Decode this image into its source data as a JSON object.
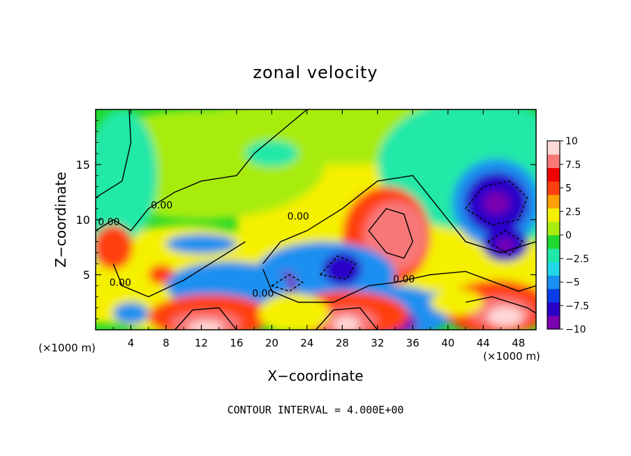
{
  "chart_data": {
    "type": "heatmap",
    "title": "zonal velocity",
    "xlabel": "X−coordinate",
    "ylabel": "Z−coordinate",
    "x_unit": "(×1000 m)",
    "y_unit": "(×1000 m)",
    "footer": "CONTOUR INTERVAL = 4.000E+00",
    "xlim": [
      0,
      50
    ],
    "ylim": [
      0,
      20
    ],
    "x_ticks": [
      4,
      8,
      12,
      16,
      20,
      24,
      28,
      32,
      36,
      40,
      44,
      48
    ],
    "x_tick_labels": [
      "4",
      "8",
      "12",
      "16",
      "20",
      "24",
      "28",
      "32",
      "36",
      "40",
      "44",
      "48"
    ],
    "y_ticks": [
      5,
      10,
      15
    ],
    "y_tick_labels": [
      "5",
      "10",
      "15"
    ],
    "contour_interval": 4.0,
    "contour_labels": [
      {
        "text": "0.00",
        "x": 1.5,
        "z": 9.5
      },
      {
        "text": "0.00",
        "x": 7.5,
        "z": 11.0
      },
      {
        "text": "0.00",
        "x": 23.0,
        "z": 10.0
      },
      {
        "text": "0.00",
        "x": 2.8,
        "z": 4.0
      },
      {
        "text": "0.00",
        "x": 19.0,
        "z": 3.0
      },
      {
        "text": "0.00",
        "x": 35.0,
        "z": 4.3
      }
    ],
    "colorbar": {
      "min": -10,
      "max": 10,
      "tick_values": [
        10,
        7.5,
        5,
        2.5,
        0,
        -2.5,
        -5,
        -7.5,
        -10
      ],
      "tick_labels": [
        "10",
        "7.5",
        "5",
        "2.5",
        "0",
        "−2.5",
        "−5",
        "−7.5",
        "−10"
      ],
      "colors": [
        "#7a00b0",
        "#2a00c8",
        "#0a3ce8",
        "#1a90f0",
        "#22d8e8",
        "#20e8a8",
        "#20d830",
        "#a8ec10",
        "#f4f000",
        "#ffa000",
        "#ff4010",
        "#f00000",
        "#f87878",
        "#ffd8d8"
      ]
    },
    "field_features": [
      {
        "kind": "max",
        "x": 34.0,
        "z": 9.0,
        "value": 8.5
      },
      {
        "kind": "max",
        "x": 46.0,
        "z": 1.5,
        "value": 10.5
      },
      {
        "kind": "max",
        "x": 12.5,
        "z": 0.5,
        "value": 10.5
      },
      {
        "kind": "max",
        "x": 28.5,
        "z": 1.0,
        "value": 10.0
      },
      {
        "kind": "min",
        "x": 45.5,
        "z": 11.5,
        "value": -11.0
      },
      {
        "kind": "min",
        "x": 46.5,
        "z": 7.7,
        "value": -10.5
      },
      {
        "kind": "min",
        "x": 28.0,
        "z": 5.5,
        "value": -8.0
      },
      {
        "kind": "min",
        "x": 21.5,
        "z": 4.2,
        "value": -9.0
      },
      {
        "kind": "min",
        "x": 34.0,
        "z": 0.5,
        "value": -9.0
      },
      {
        "kind": "max",
        "x": 2.0,
        "z": 7.5,
        "value": 5.5
      },
      {
        "kind": "max",
        "x": 7.5,
        "z": 5.0,
        "value": 5.0
      }
    ]
  }
}
